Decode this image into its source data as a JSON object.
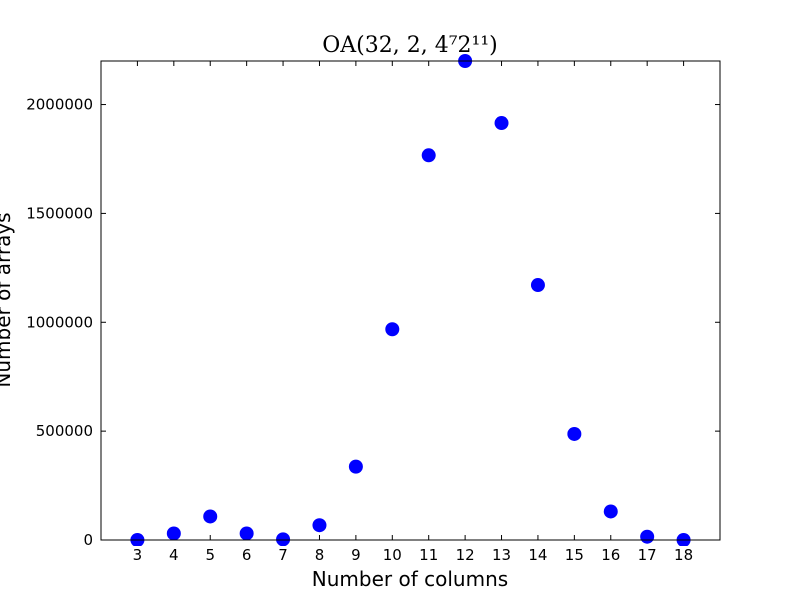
{
  "chart_data": {
    "type": "scatter",
    "title": "OA(32, 2, 4⁷2¹¹)",
    "xlabel": "Number of columns",
    "ylabel": "Number of arrays",
    "x": [
      3,
      4,
      5,
      6,
      7,
      8,
      9,
      10,
      11,
      12,
      13,
      14,
      15,
      16,
      17,
      18
    ],
    "y": [
      0,
      30000,
      108000,
      30000,
      3000,
      68000,
      337000,
      968000,
      1767000,
      2200000,
      1915000,
      1171000,
      487000,
      131000,
      15000,
      0
    ],
    "xlim": [
      2,
      19
    ],
    "ylim": [
      0,
      2200000
    ],
    "xticks": [
      3,
      4,
      5,
      6,
      7,
      8,
      9,
      10,
      11,
      12,
      13,
      14,
      15,
      16,
      17,
      18
    ],
    "yticks": [
      0,
      500000,
      1000000,
      1500000,
      2000000
    ],
    "marker_color": "#0000ff",
    "grid": false,
    "legend": "none"
  }
}
